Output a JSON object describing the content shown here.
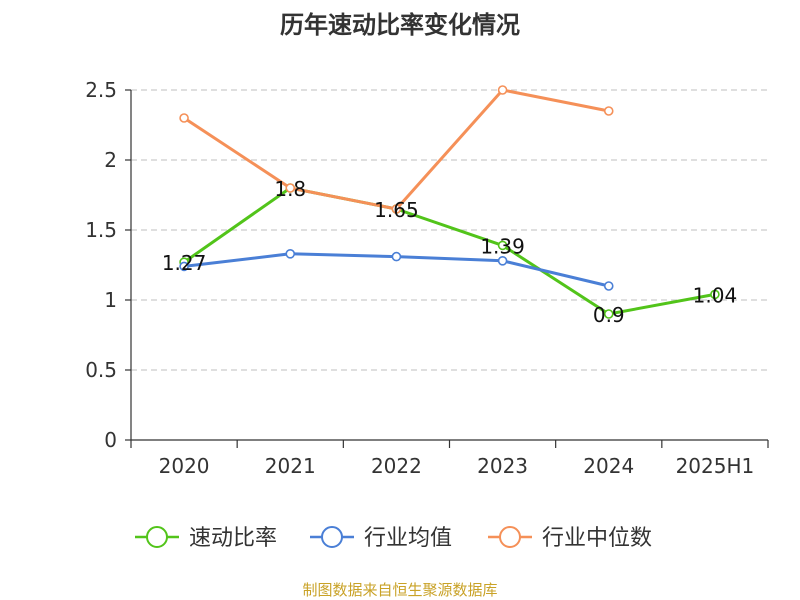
{
  "title": "历年速动比率变化情况",
  "source_note": "制图数据来自恒生聚源数据库",
  "colors": {
    "series_green": "#52c41a",
    "series_blue": "#4a7fd6",
    "series_orange": "#f59058",
    "grid": "#cccccc",
    "axis": "#333333",
    "source_text": "#c9a227"
  },
  "chart_data": {
    "type": "line",
    "categories": [
      "2020",
      "2021",
      "2022",
      "2023",
      "2024",
      "2025H1"
    ],
    "ylim": [
      0,
      2.5
    ],
    "yticks": [
      0,
      0.5,
      1,
      1.5,
      2,
      2.5
    ],
    "ytick_labels": [
      "0",
      "0.5",
      "1",
      "1.5",
      "2",
      "2.5"
    ],
    "grid": true,
    "legend_position": "bottom",
    "series": [
      {
        "name": "速动比率",
        "color": "#52c41a",
        "values": [
          1.27,
          1.8,
          1.65,
          1.39,
          0.9,
          1.04
        ],
        "data_labels": [
          "1.27",
          "1.8",
          "1.65",
          "1.39",
          "0.9",
          "1.04"
        ]
      },
      {
        "name": "行业均值",
        "color": "#4a7fd6",
        "values": [
          1.24,
          1.33,
          1.31,
          1.28,
          1.1,
          null
        ]
      },
      {
        "name": "行业中位数",
        "color": "#f59058",
        "values": [
          2.3,
          1.8,
          1.65,
          2.5,
          2.35,
          null
        ]
      }
    ]
  }
}
